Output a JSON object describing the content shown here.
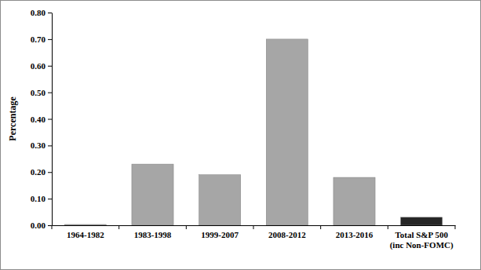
{
  "chart_data": {
    "type": "bar",
    "ylabel": "Percentage",
    "categories": [
      "1964-1982",
      "1983-1998",
      "1999-2007",
      "2008-2012",
      "2013-2016",
      "Total S&P 500 (inc Non-FOMC)"
    ],
    "values": [
      0.003,
      0.23,
      0.19,
      0.7,
      0.18,
      0.03
    ],
    "colors": [
      "#a6a6a6",
      "#a6a6a6",
      "#a6a6a6",
      "#a6a6a6",
      "#a6a6a6",
      "#262626"
    ],
    "ylim": [
      0,
      0.8
    ],
    "yticks": [
      {
        "value": 0,
        "label": "0.00"
      },
      {
        "value": 0.1,
        "label": "0.10"
      },
      {
        "value": 0.2,
        "label": "0.20"
      },
      {
        "value": 0.3,
        "label": "0.30"
      },
      {
        "value": 0.4,
        "label": "0.40"
      },
      {
        "value": 0.5,
        "label": "0.50"
      },
      {
        "value": 0.6,
        "label": "0.60"
      },
      {
        "value": 0.7,
        "label": "0.70"
      },
      {
        "value": 0.8,
        "label": "0.80"
      }
    ],
    "grid": false
  }
}
